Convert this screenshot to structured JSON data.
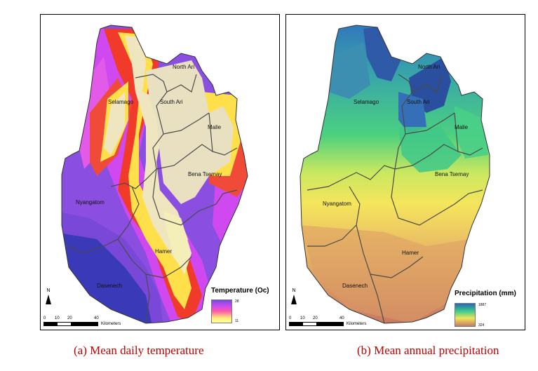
{
  "panels": {
    "temperature": {
      "caption": "(a) Mean daily temperature",
      "legend_title": "Temperature (Oc)",
      "legend_max": "28",
      "legend_min": "11",
      "legend_colors": [
        "#6f4fd6",
        "#c84af0",
        "#ff5aa8",
        "#fff07a",
        "#ffffa0"
      ]
    },
    "precipitation": {
      "caption": "(b) Mean annual precipitation",
      "legend_title": "Precipitation (mm)",
      "legend_max": "1887",
      "legend_min": "324",
      "legend_colors": [
        "#2a66b8",
        "#3fcf8a",
        "#f2e35c",
        "#c87860"
      ]
    }
  },
  "regions": [
    "North Ari",
    "South Ari",
    "Selamago",
    "Malie",
    "Bena Tsemay",
    "Nyangatom",
    "Hamer",
    "Dasenech"
  ],
  "scalebar": {
    "ticks": [
      "0",
      "10",
      "20",
      "40"
    ],
    "unit": "Kilometers"
  },
  "north_arrow": "N",
  "colors": {
    "caption": "#c00000",
    "district_border": "#4a4a4a"
  }
}
